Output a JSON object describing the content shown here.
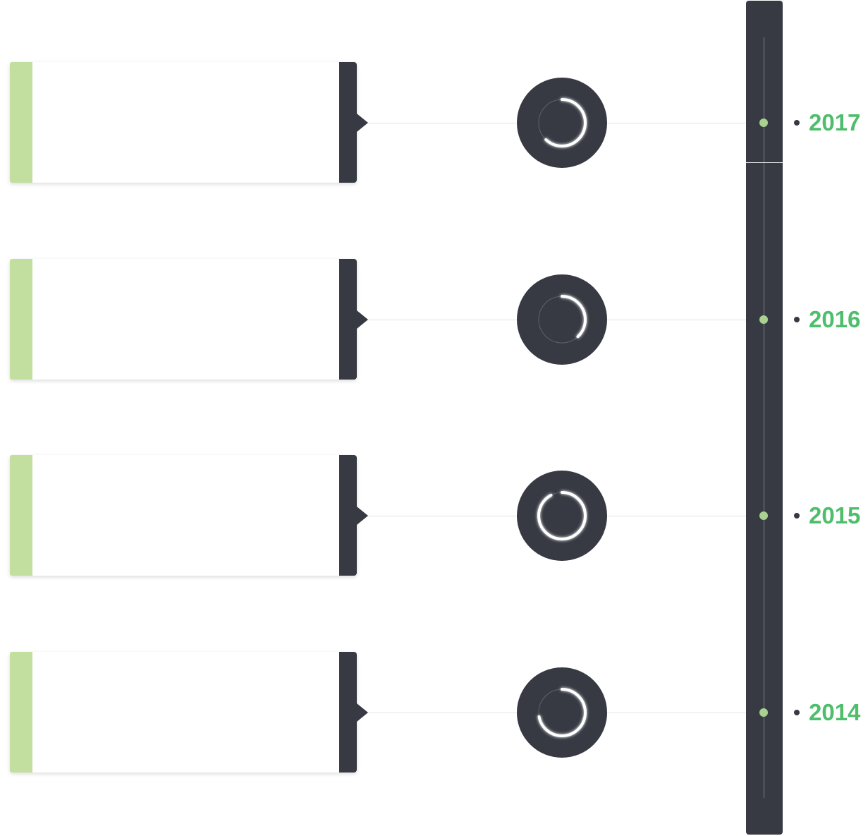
{
  "colors": {
    "dark": "#373a43",
    "accent_green": "#c2dfa0",
    "dot_green": "#a9d290",
    "year_text": "#4fbe6c",
    "connector": "#e3e3e3",
    "card_bg": "#ffffff"
  },
  "timeline": {
    "entries": [
      {
        "year": "2017",
        "progress": 0.62
      },
      {
        "year": "2016",
        "progress": 0.38
      },
      {
        "year": "2015",
        "progress": 0.92
      },
      {
        "year": "2014",
        "progress": 0.72
      }
    ]
  }
}
